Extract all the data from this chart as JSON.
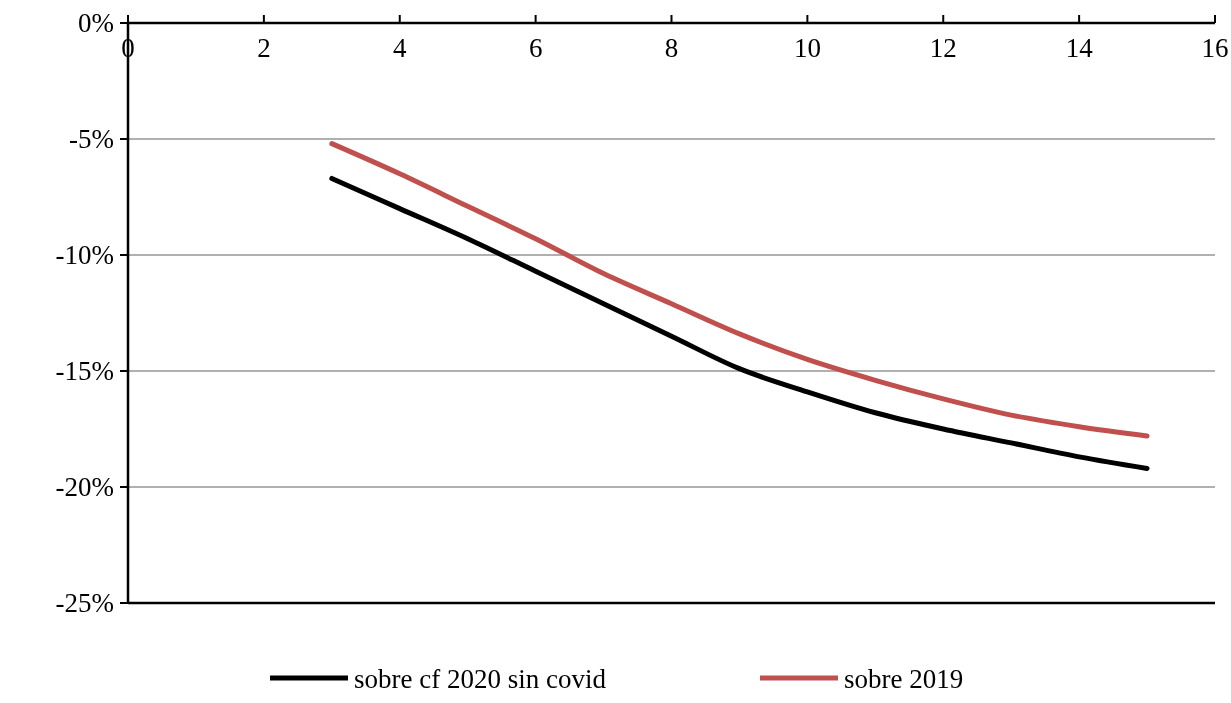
{
  "chart_data": {
    "type": "line",
    "x": [
      3,
      4,
      5,
      6,
      7,
      8,
      9,
      10,
      11,
      12,
      13,
      14,
      15
    ],
    "series": [
      {
        "name": "sobre cf 2020 sin covid",
        "color": "#000000",
        "values": [
          -6.7,
          -8.0,
          -9.3,
          -10.7,
          -12.1,
          -13.5,
          -14.9,
          -15.9,
          -16.8,
          -17.5,
          -18.1,
          -18.7,
          -19.2
        ]
      },
      {
        "name": "sobre 2019",
        "color": "#c0504d",
        "values": [
          -5.2,
          -6.5,
          -7.9,
          -9.3,
          -10.8,
          -12.1,
          -13.4,
          -14.5,
          -15.4,
          -16.2,
          -16.9,
          -17.4,
          -17.8
        ]
      }
    ],
    "xlim": [
      0,
      16
    ],
    "xticks": [
      0,
      2,
      4,
      6,
      8,
      10,
      12,
      14,
      16
    ],
    "ylim": [
      -25,
      0
    ],
    "yticks": [
      {
        "value": -25,
        "label": "-25%"
      },
      {
        "value": -20,
        "label": "-20%"
      },
      {
        "value": -15,
        "label": "-15%"
      },
      {
        "value": -10,
        "label": "-10%"
      },
      {
        "value": -5,
        "label": "-5%"
      },
      {
        "value": 0,
        "label": "0%"
      }
    ],
    "grid": "y",
    "legend": "bottom",
    "marker": "none",
    "line_style": "solid"
  }
}
